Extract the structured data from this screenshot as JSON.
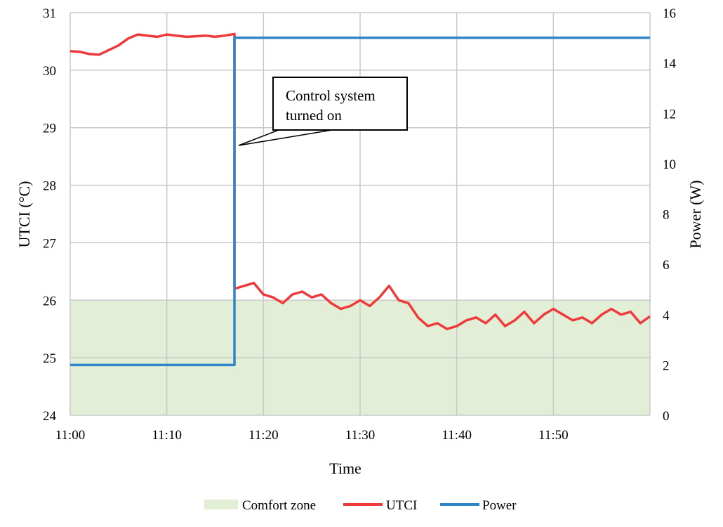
{
  "chart_data": {
    "type": "line",
    "xlabel": "Time",
    "ylabel_left": "UTCI  (°C)",
    "ylabel_right": "Power (W)",
    "x_range_minutes": [
      0,
      60
    ],
    "x_tick_labels": [
      "11:00",
      "11:10",
      "11:20",
      "11:30",
      "11:40",
      "11:50"
    ],
    "y_left_ticks": [
      "24",
      "25",
      "26",
      "27",
      "28",
      "29",
      "30",
      "31"
    ],
    "y_right_ticks": [
      "0",
      "2",
      "4",
      "6",
      "8",
      "10",
      "12",
      "14",
      "16"
    ],
    "ylim_left": [
      24,
      31
    ],
    "ylim_right": [
      0,
      16
    ],
    "grid": true,
    "legend_position": "bottom",
    "comfort_zone": {
      "name": "Comfort zone",
      "ymin": 24,
      "ymax": 26,
      "color": "#e2efd6"
    },
    "annotation": {
      "text_lines": [
        "Control system",
        "turned on"
      ],
      "at_time": "11:17"
    },
    "series": [
      {
        "name": "UTCI",
        "axis": "left",
        "color": "#ee3a3a",
        "x": [
          "11:00",
          "11:01",
          "11:02",
          "11:03",
          "11:04",
          "11:05",
          "11:06",
          "11:07",
          "11:08",
          "11:09",
          "11:10",
          "11:11",
          "11:12",
          "11:13",
          "11:14",
          "11:15",
          "11:16",
          "11:17",
          "11:17",
          "11:18",
          "11:19",
          "11:20",
          "11:21",
          "11:22",
          "11:23",
          "11:24",
          "11:25",
          "11:26",
          "11:27",
          "11:28",
          "11:29",
          "11:30",
          "11:31",
          "11:32",
          "11:33",
          "11:34",
          "11:35",
          "11:36",
          "11:37",
          "11:38",
          "11:39",
          "11:40",
          "11:41",
          "11:42",
          "11:43",
          "11:44",
          "11:45",
          "11:46",
          "11:47",
          "11:48",
          "11:49",
          "11:50",
          "11:51",
          "11:52",
          "11:53",
          "11:54",
          "11:55",
          "11:56",
          "11:57",
          "11:58",
          "11:59",
          "12:00"
        ],
        "y": [
          30.33,
          30.32,
          30.28,
          30.27,
          30.35,
          30.43,
          30.55,
          30.62,
          30.6,
          30.58,
          30.62,
          30.6,
          30.58,
          30.59,
          30.6,
          30.58,
          30.6,
          30.63,
          26.2,
          26.25,
          26.3,
          26.1,
          26.05,
          25.95,
          26.1,
          26.15,
          26.05,
          26.1,
          25.95,
          25.85,
          25.9,
          26.0,
          25.9,
          26.05,
          26.25,
          26.0,
          25.95,
          25.7,
          25.55,
          25.6,
          25.5,
          25.55,
          25.65,
          25.7,
          25.6,
          25.75,
          25.55,
          25.65,
          25.8,
          25.6,
          25.75,
          25.85,
          25.75,
          25.65,
          25.7,
          25.6,
          25.75,
          25.85,
          25.75,
          25.8,
          25.6,
          25.72
        ]
      },
      {
        "name": "Power",
        "axis": "right",
        "color": "#2e86c8",
        "x": [
          "11:00",
          "11:17",
          "11:17",
          "12:00"
        ],
        "y": [
          2,
          2,
          15,
          15
        ]
      }
    ]
  }
}
